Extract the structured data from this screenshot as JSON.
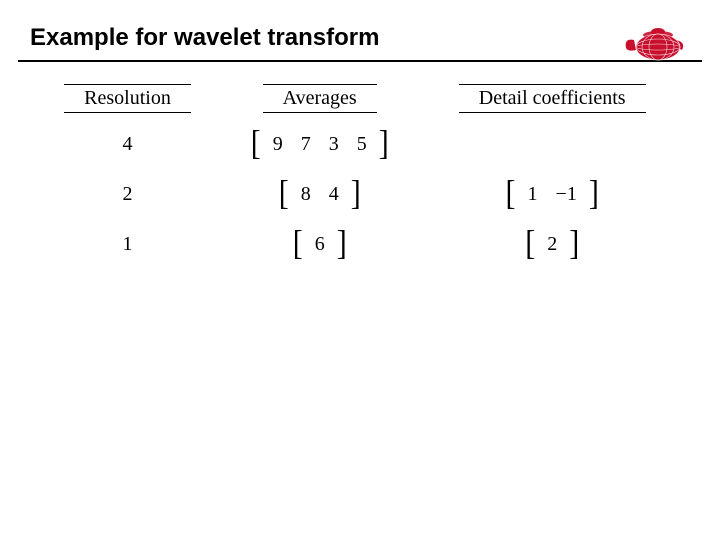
{
  "title": "Example for wavelet transform",
  "logo": {
    "color": "#c8102e",
    "name": "teapot-icon"
  },
  "columns": {
    "resolution": "Resolution",
    "averages": "Averages",
    "detail": "Detail coefficients"
  },
  "rows": [
    {
      "resolution": "4",
      "averages": [
        "9",
        "7",
        "3",
        "5"
      ],
      "detail": null
    },
    {
      "resolution": "2",
      "averages": [
        "8",
        "4"
      ],
      "detail": [
        "1",
        "−1"
      ]
    },
    {
      "resolution": "1",
      "averages": [
        "6"
      ],
      "detail": [
        "2"
      ]
    }
  ],
  "style": {
    "title_fontsize": 24,
    "body_fontsize": 20,
    "header_border_color": "#000000",
    "hr_color": "#000000",
    "background": "#ffffff"
  }
}
